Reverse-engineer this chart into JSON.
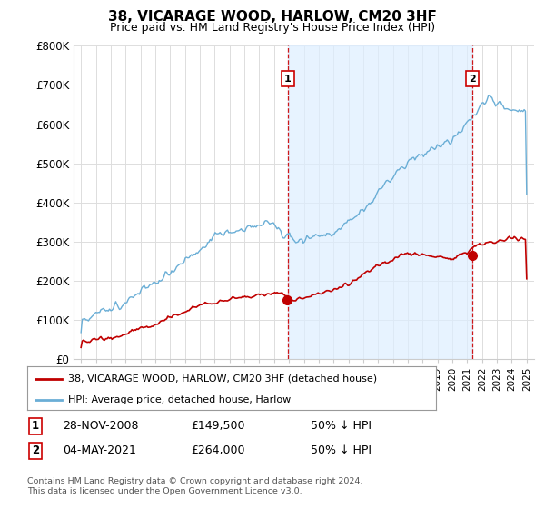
{
  "title": "38, VICARAGE WOOD, HARLOW, CM20 3HF",
  "subtitle": "Price paid vs. HM Land Registry's House Price Index (HPI)",
  "ylim": [
    0,
    800000
  ],
  "yticks": [
    0,
    100000,
    200000,
    300000,
    400000,
    500000,
    600000,
    700000,
    800000
  ],
  "ytick_labels": [
    "£0",
    "£100K",
    "£200K",
    "£300K",
    "£400K",
    "£500K",
    "£600K",
    "£700K",
    "£800K"
  ],
  "hpi_color": "#6aaed6",
  "price_color": "#c00000",
  "vline_color": "#cc0000",
  "shade_color": "#ddeeff",
  "point1_year": 2008.91,
  "point1_price": 149500,
  "point1_label": "1",
  "point1_date": "28-NOV-2008",
  "point1_amount": "£149,500",
  "point1_note": "50% ↓ HPI",
  "point2_year": 2021.34,
  "point2_price": 264000,
  "point2_label": "2",
  "point2_date": "04-MAY-2021",
  "point2_amount": "£264,000",
  "point2_note": "50% ↓ HPI",
  "legend_line1": "38, VICARAGE WOOD, HARLOW, CM20 3HF (detached house)",
  "legend_line2": "HPI: Average price, detached house, Harlow",
  "footer": "Contains HM Land Registry data © Crown copyright and database right 2024.\nThis data is licensed under the Open Government Licence v3.0.",
  "background_color": "#ffffff",
  "grid_color": "#dddddd",
  "xlim_left": 1994.5,
  "xlim_right": 2025.5
}
